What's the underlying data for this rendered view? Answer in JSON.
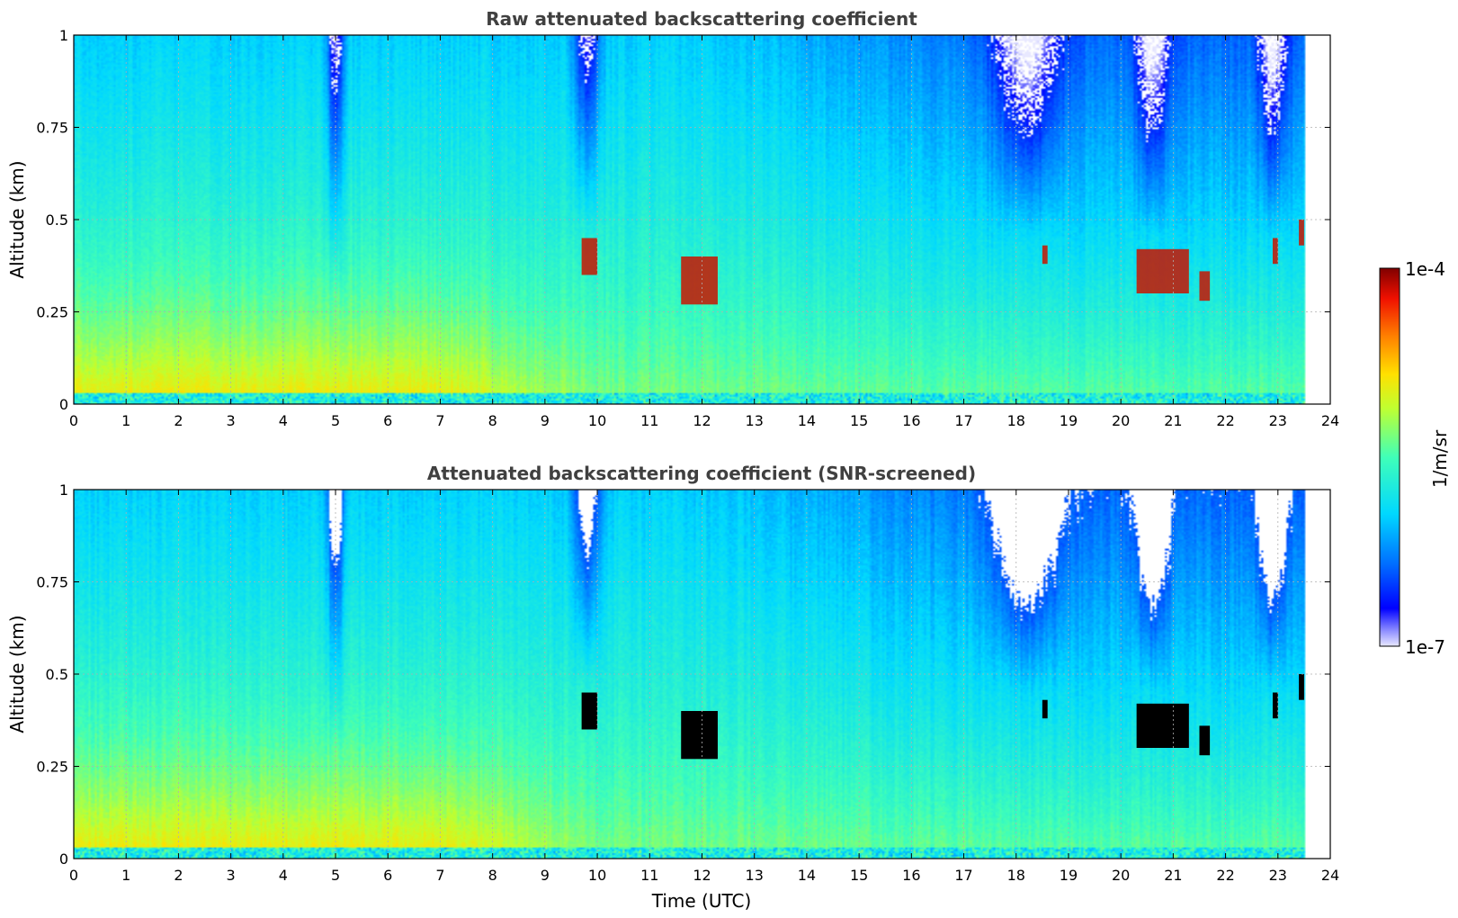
{
  "figure": {
    "xlabel": "Time (UTC)",
    "colorbar": {
      "label": "1/m/sr",
      "max_label": "1e-4",
      "min_label": "1e-7",
      "vmin": 1e-07,
      "vmax": 0.0001,
      "scale": "log",
      "colormap": "jet"
    }
  },
  "chart_data": [
    {
      "type": "heatmap",
      "title": "Raw attenuated backscattering coefficient",
      "xlabel": "",
      "ylabel": "Altitude (km)",
      "xlim": [
        0,
        24
      ],
      "ylim": [
        0,
        1
      ],
      "xticks": [
        "0",
        "1",
        "2",
        "3",
        "4",
        "5",
        "6",
        "7",
        "8",
        "9",
        "10",
        "11",
        "12",
        "13",
        "14",
        "15",
        "16",
        "17",
        "18",
        "19",
        "20",
        "21",
        "22",
        "23",
        "24"
      ],
      "yticks": [
        "0",
        "0.25",
        "0.5",
        "0.75",
        "1"
      ],
      "ytick_values": [
        0,
        0.25,
        0.5,
        0.75,
        1
      ],
      "grid": true,
      "data_end_time": 23.5,
      "screened": false,
      "cloud_features": [
        {
          "t0": 9.7,
          "t1": 10.0,
          "z0": 0.35,
          "z1": 0.45
        },
        {
          "t0": 11.6,
          "t1": 12.3,
          "z0": 0.27,
          "z1": 0.4
        },
        {
          "t0": 18.5,
          "t1": 18.6,
          "z0": 0.38,
          "z1": 0.43
        },
        {
          "t0": 20.3,
          "t1": 21.3,
          "z0": 0.3,
          "z1": 0.42
        },
        {
          "t0": 21.5,
          "t1": 21.7,
          "z0": 0.28,
          "z1": 0.36
        },
        {
          "t0": 22.9,
          "t1": 23.0,
          "z0": 0.38,
          "z1": 0.45
        },
        {
          "t0": 23.4,
          "t1": 23.5,
          "z0": 0.43,
          "z1": 0.5
        }
      ]
    },
    {
      "type": "heatmap",
      "title": "Attenuated backscattering coefficient (SNR-screened)",
      "xlabel": "Time (UTC)",
      "ylabel": "Altitude (km)",
      "xlim": [
        0,
        24
      ],
      "ylim": [
        0,
        1
      ],
      "xticks": [
        "0",
        "1",
        "2",
        "3",
        "4",
        "5",
        "6",
        "7",
        "8",
        "9",
        "10",
        "11",
        "12",
        "13",
        "14",
        "15",
        "16",
        "17",
        "18",
        "19",
        "20",
        "21",
        "22",
        "23",
        "24"
      ],
      "yticks": [
        "0",
        "0.25",
        "0.5",
        "0.75",
        "1"
      ],
      "ytick_values": [
        0,
        0.25,
        0.5,
        0.75,
        1
      ],
      "grid": true,
      "data_end_time": 23.5,
      "screened": true,
      "cloud_features": [
        {
          "t0": 9.7,
          "t1": 10.0,
          "z0": 0.35,
          "z1": 0.45
        },
        {
          "t0": 11.6,
          "t1": 12.3,
          "z0": 0.27,
          "z1": 0.4
        },
        {
          "t0": 18.5,
          "t1": 18.6,
          "z0": 0.38,
          "z1": 0.43
        },
        {
          "t0": 20.3,
          "t1": 21.3,
          "z0": 0.3,
          "z1": 0.42
        },
        {
          "t0": 21.5,
          "t1": 21.7,
          "z0": 0.28,
          "z1": 0.36
        },
        {
          "t0": 22.9,
          "t1": 23.0,
          "z0": 0.38,
          "z1": 0.45
        },
        {
          "t0": 23.4,
          "t1": 23.5,
          "z0": 0.43,
          "z1": 0.5
        }
      ]
    }
  ]
}
